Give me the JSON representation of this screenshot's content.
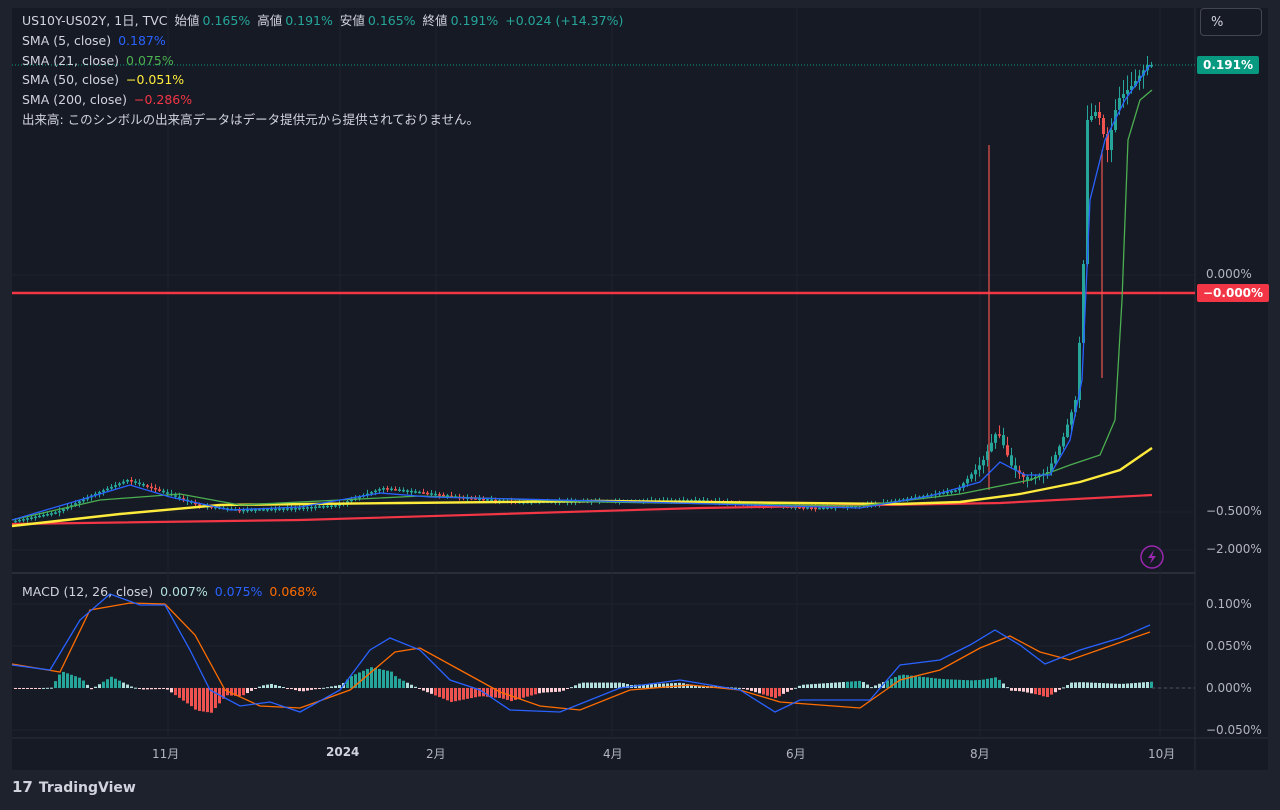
{
  "header": {
    "symbol": "US10Y-US02Y, 1日, TVC",
    "open_label": "始値",
    "open": "0.165%",
    "high_label": "高値",
    "high": "0.191%",
    "low_label": "安値",
    "low": "0.165%",
    "close_label": "終値",
    "close": "0.191%",
    "change": "+0.024 (+14.37%)"
  },
  "indicators": [
    {
      "label": "SMA (5, close)",
      "value": "0.187%",
      "color": "#2962ff"
    },
    {
      "label": "SMA (21, close)",
      "value": "0.075%",
      "color": "#4caf50"
    },
    {
      "label": "SMA (50, close)",
      "value": "−0.051%",
      "color": "#ffeb3b"
    },
    {
      "label": "SMA (200, close)",
      "value": "−0.286%",
      "color": "#f23645"
    }
  ],
  "volume_note": "出来高: このシンボルの出来高データはデータ提供元から提供されておりません。",
  "macd": {
    "label": "MACD (12, 26, close)",
    "hist": "0.007%",
    "macd": "0.075%",
    "signal": "0.068%"
  },
  "scale_button": "%",
  "brand": "TradingView",
  "badges": {
    "last_price": "0.191%",
    "zero_line": "−0.000%"
  },
  "colors": {
    "up": "#26a69a",
    "down": "#ef5350",
    "macd": "#2962ff",
    "signal": "#ff6d00",
    "sma5": "#2962ff",
    "sma21": "#4caf50",
    "sma50": "#ffeb3b",
    "sma200": "#f23645",
    "hline": "#f23645"
  },
  "chart_data": [
    {
      "type": "line",
      "name": "price",
      "y_axis_ticks": [
        "0.000%",
        "−0.500%",
        "−2.000%"
      ],
      "x_axis_ticks": [
        "11月",
        "2024",
        "2月",
        "4月",
        "6月",
        "8月",
        "10月"
      ],
      "horizontal_line": 0.0,
      "last_value": 0.191,
      "sma": {
        "sma5": 0.187,
        "sma21": 0.075,
        "sma50": -0.051,
        "sma200": -0.286
      }
    },
    {
      "type": "line",
      "name": "MACD",
      "y_axis_ticks": [
        "0.100%",
        "0.050%",
        "0.000%",
        "−0.050%"
      ],
      "ylim": [
        -0.05,
        0.1
      ],
      "values": {
        "histogram": 0.007,
        "macd": 0.075,
        "signal": 0.068
      }
    }
  ]
}
